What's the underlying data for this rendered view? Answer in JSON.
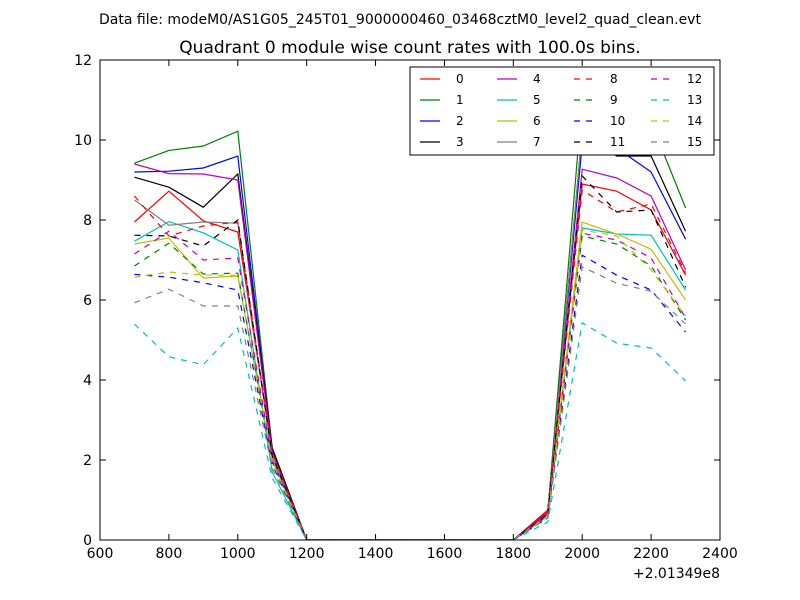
{
  "chart_data": {
    "type": "line",
    "suptitle": "Data file: modeM0/AS1G05_245T01_9000000460_03468cztM0_level2_quad_clean.evt",
    "title": "Quadrant 0 module wise count rates with 100.0s bins.",
    "xlabel": "",
    "ylabel": "",
    "x_offset_label": "+2.01349e8",
    "xlim": [
      600,
      2400
    ],
    "ylim": [
      0,
      12
    ],
    "x_ticks": [
      600,
      800,
      1000,
      1200,
      1400,
      1600,
      1800,
      2000,
      2200,
      2400
    ],
    "y_ticks": [
      0,
      2,
      4,
      6,
      8,
      10,
      12
    ],
    "x": [
      700,
      800,
      900,
      1000,
      1100,
      1200,
      1300,
      1400,
      1500,
      1600,
      1700,
      1800,
      1900,
      2000,
      2100,
      2200,
      2300
    ],
    "legend_position": "top-right",
    "series": [
      {
        "name": "0",
        "color": "#ff0000",
        "dash": "solid",
        "values": [
          7.95,
          8.72,
          7.98,
          7.7,
          2.2,
          0,
          0,
          0,
          0,
          0,
          0,
          0,
          0.75,
          8.9,
          8.72,
          8.25,
          6.62
        ]
      },
      {
        "name": "1",
        "color": "#008000",
        "dash": "solid",
        "values": [
          9.42,
          9.74,
          9.85,
          10.22,
          2.3,
          0,
          0,
          0,
          0,
          0,
          0,
          0,
          0.7,
          11.0,
          10.2,
          10.45,
          8.3
        ]
      },
      {
        "name": "2",
        "color": "#0000ff",
        "dash": "solid",
        "values": [
          9.2,
          9.22,
          9.3,
          9.6,
          2.25,
          0,
          0,
          0,
          0,
          0,
          0,
          0,
          0.7,
          9.9,
          9.8,
          9.2,
          7.52
        ]
      },
      {
        "name": "3",
        "color": "#000000",
        "dash": "solid",
        "values": [
          9.07,
          8.82,
          8.32,
          9.15,
          2.3,
          0,
          0,
          0,
          0,
          0,
          0,
          0,
          0.7,
          10.2,
          9.6,
          9.6,
          7.72
        ]
      },
      {
        "name": "4",
        "color": "#bf00bf",
        "dash": "solid",
        "values": [
          9.4,
          9.16,
          9.15,
          9.0,
          2.2,
          0,
          0,
          0,
          0,
          0,
          0,
          0,
          0.7,
          9.27,
          9.05,
          8.6,
          6.75
        ]
      },
      {
        "name": "5",
        "color": "#00bfbf",
        "dash": "solid",
        "values": [
          7.47,
          7.96,
          7.68,
          7.25,
          1.7,
          0,
          0,
          0,
          0,
          0,
          0,
          0,
          0.6,
          7.8,
          7.65,
          7.62,
          6.25
        ]
      },
      {
        "name": "6",
        "color": "#bfbf00",
        "dash": "solid",
        "values": [
          7.4,
          7.55,
          6.55,
          6.6,
          2.0,
          0,
          0,
          0,
          0,
          0,
          0,
          0,
          0.65,
          7.95,
          7.65,
          7.27,
          6.0
        ]
      },
      {
        "name": "7",
        "color": "#808080",
        "dash": "solid",
        "values": [
          8.5,
          7.87,
          7.95,
          7.92,
          2.1,
          0,
          0,
          0,
          0,
          0,
          0,
          0,
          0.65,
          10.2,
          10.15,
          10.4,
          10.4
        ]
      },
      {
        "name": "8",
        "color": "#ff0000",
        "dash": "dashed",
        "values": [
          8.6,
          7.6,
          7.85,
          7.95,
          2.2,
          0,
          0,
          0,
          0,
          0,
          0,
          0,
          0.7,
          8.75,
          8.2,
          8.4,
          6.68
        ]
      },
      {
        "name": "9",
        "color": "#008000",
        "dash": "dashed",
        "values": [
          6.85,
          7.42,
          6.65,
          6.67,
          1.95,
          0,
          0,
          0,
          0,
          0,
          0,
          0,
          0.6,
          7.6,
          7.4,
          6.85,
          5.5
        ]
      },
      {
        "name": "10",
        "color": "#0000ff",
        "dash": "dashed",
        "values": [
          6.64,
          6.57,
          6.43,
          6.25,
          1.9,
          0,
          0,
          0,
          0,
          0,
          0,
          0,
          0.55,
          7.12,
          6.62,
          6.25,
          5.2
        ]
      },
      {
        "name": "11",
        "color": "#000000",
        "dash": "dashed",
        "values": [
          7.62,
          7.6,
          7.35,
          8.0,
          2.1,
          0,
          0,
          0,
          0,
          0,
          0,
          0,
          0.65,
          9.1,
          8.2,
          8.25,
          6.32
        ]
      },
      {
        "name": "12",
        "color": "#bf00bf",
        "dash": "dashed",
        "values": [
          7.15,
          7.72,
          7.0,
          7.05,
          2.0,
          0,
          0,
          0,
          0,
          0,
          0,
          0,
          0.65,
          7.67,
          7.5,
          7.05,
          5.55
        ]
      },
      {
        "name": "13",
        "color": "#00bfbf",
        "dash": "dashed",
        "values": [
          5.4,
          4.58,
          4.38,
          5.3,
          1.55,
          0,
          0,
          0,
          0,
          0,
          0,
          0,
          0.45,
          5.43,
          4.92,
          4.8,
          3.98
        ]
      },
      {
        "name": "14",
        "color": "#bfbf00",
        "dash": "dashed",
        "values": [
          6.57,
          6.7,
          6.62,
          6.62,
          1.95,
          0,
          0,
          0,
          0,
          0,
          0,
          0,
          0.6,
          7.75,
          7.6,
          6.75,
          5.6
        ]
      },
      {
        "name": "15",
        "color": "#808080",
        "dash": "dashed",
        "values": [
          5.93,
          6.27,
          5.85,
          5.85,
          1.8,
          0,
          0,
          0,
          0,
          0,
          0,
          0,
          0.55,
          6.83,
          6.42,
          6.22,
          5.4
        ]
      }
    ]
  }
}
